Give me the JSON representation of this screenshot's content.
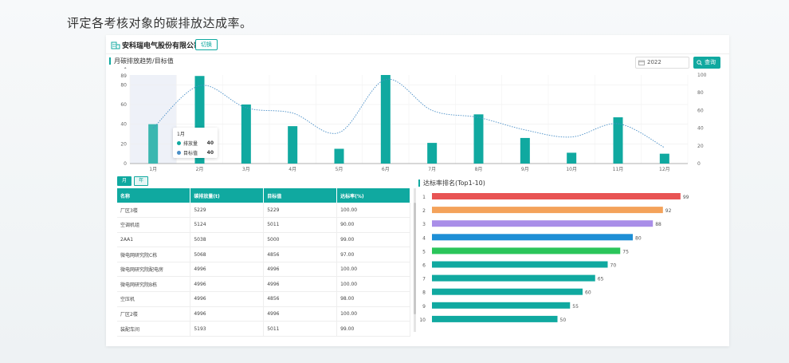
{
  "caption": "评定各考核对象的碳排放达成率。",
  "header": {
    "company": "安科瑞电气股份有限公司",
    "switch_label": "切换"
  },
  "trend": {
    "title": "月碳排放趋势/目标值",
    "year": "2022",
    "query_label": "查询",
    "tooltip": {
      "month": "1月",
      "emission_label": "排放量",
      "emission_value": "40",
      "target_label": "目标值",
      "target_value": "40"
    }
  },
  "colors": {
    "accent": "#10a9a0",
    "line": "#4a8fc7"
  },
  "chart_data": [
    {
      "type": "bar",
      "categories": [
        "1月",
        "2月",
        "3月",
        "4月",
        "5月",
        "6月",
        "7月",
        "8月",
        "9月",
        "10月",
        "11月",
        "12月"
      ],
      "series": [
        {
          "name": "排放量",
          "type": "bar",
          "axis": "left",
          "values": [
            40,
            89,
            60,
            38,
            15,
            90,
            21,
            50,
            26,
            11,
            47,
            10
          ]
        },
        {
          "name": "目标值",
          "type": "line",
          "axis": "right",
          "values": [
            40,
            88,
            63,
            57,
            35,
            95,
            60,
            52,
            38,
            30,
            45,
            18
          ]
        }
      ],
      "y_left_ticks": [
        "0",
        "20",
        "40",
        "60",
        "80",
        "89"
      ],
      "y_right_ticks": [
        "0",
        "20",
        "40",
        "60",
        "80",
        "100"
      ],
      "y_left_top_label": "1",
      "ylim_left": [
        0,
        90
      ],
      "ylim_right": [
        0,
        100
      ],
      "grid": true
    },
    {
      "type": "bar",
      "orientation": "horizontal",
      "title": "达标率排名(Top1-10)",
      "categories": [
        "1",
        "2",
        "3",
        "4",
        "5",
        "6",
        "7",
        "8",
        "9",
        "10"
      ],
      "values": [
        99,
        92,
        88,
        80,
        75,
        70,
        65,
        60,
        55,
        50
      ],
      "colors": [
        "#e85454",
        "#f4a25a",
        "#a98ee8",
        "#1e8fd6",
        "#2ac55a",
        "#10a9a0",
        "#10a9a0",
        "#10a9a0",
        "#10a9a0",
        "#10a9a0"
      ],
      "xlim": [
        0,
        100
      ]
    }
  ],
  "toggles": {
    "month": "月",
    "year": "年"
  },
  "table": {
    "headers": [
      "名称",
      "碳排放量(t)",
      "目标值",
      "达标率(%)"
    ],
    "rows": [
      [
        "厂区3楼",
        "5229",
        "5229",
        "100.00"
      ],
      [
        "空调机组",
        "5124",
        "5011",
        "90.00"
      ],
      [
        "2AA1",
        "5038",
        "5000",
        "99.00"
      ],
      [
        "微电网研究院C栋",
        "5068",
        "4856",
        "97.00"
      ],
      [
        "微电网研究院配电房",
        "4996",
        "4996",
        "100.00"
      ],
      [
        "微电网研究院B栋",
        "4996",
        "4996",
        "100.00"
      ],
      [
        "空压机",
        "4996",
        "4856",
        "98.00"
      ],
      [
        "厂区2楼",
        "4996",
        "4996",
        "100.00"
      ],
      [
        "装配车间",
        "5193",
        "5011",
        "99.00"
      ]
    ]
  }
}
